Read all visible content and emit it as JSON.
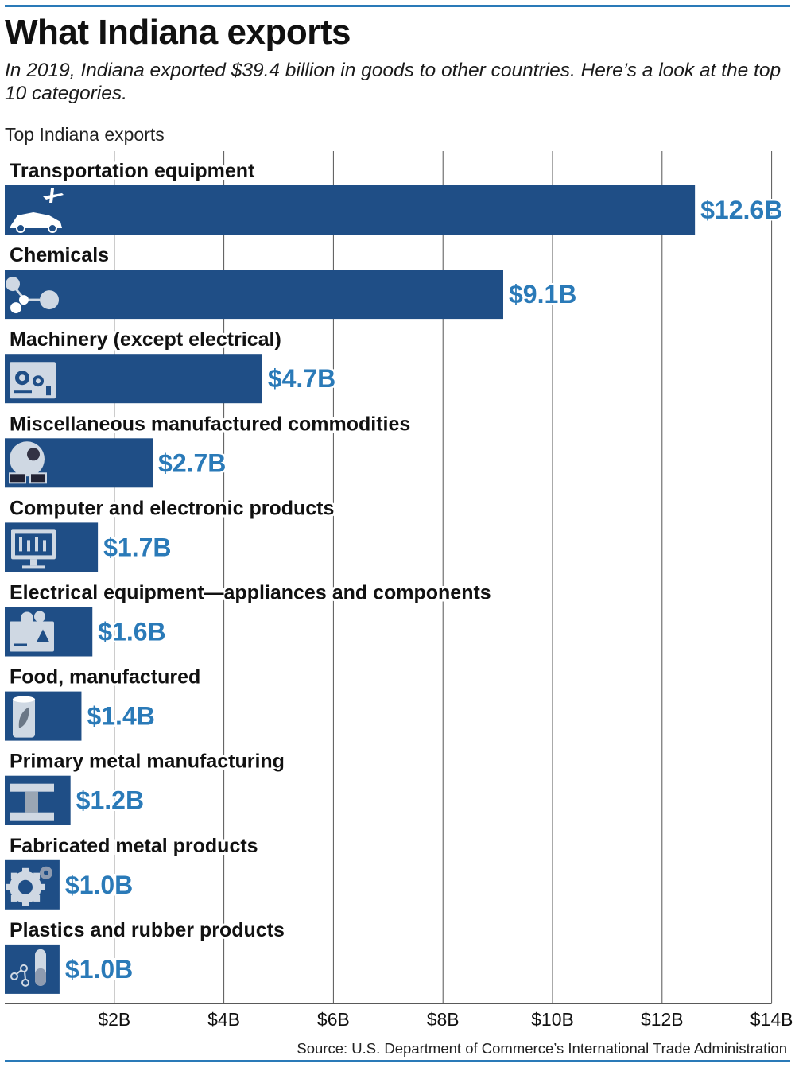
{
  "title": "What Indiana exports",
  "subtitle": "In 2019, Indiana exported $39.4 billion in goods to other countries. Here’s a look at the top 10 categories.",
  "chart_label": "Top Indiana exports",
  "source": "Source: U.S. Department of Commerce’s International Trade Administration",
  "colors": {
    "bar": "#1f4e86",
    "value_label": "#2a7ab8",
    "rule": "#2a7ab8",
    "grid": "#555555",
    "icon_light": "#cfd8e3"
  },
  "chart_data": {
    "type": "bar",
    "orientation": "horizontal",
    "categories": [
      "Transportation equipment",
      "Chemicals",
      "Machinery (except electrical)",
      "Miscellaneous manufactured commodities",
      "Computer and electronic products",
      "Electrical equipment—appliances and components",
      "Food, manufactured",
      "Primary metal manufacturing",
      "Fabricated metal products",
      "Plastics and rubber products"
    ],
    "values": [
      12.6,
      9.1,
      4.7,
      2.7,
      1.7,
      1.6,
      1.4,
      1.2,
      1.0,
      1.0
    ],
    "value_labels": [
      "$12.6B",
      "$9.1B",
      "$4.7B",
      "$2.7B",
      "$1.7B",
      "$1.6B",
      "$1.4B",
      "$1.2B",
      "$1.0B",
      "$1.0B"
    ],
    "icons": [
      "plane-and-car-icon",
      "molecule-icon",
      "gears-machine-icon",
      "ball-and-glasses-icon",
      "monitor-icon",
      "electrical-box-icon",
      "food-can-icon",
      "steel-beam-icon",
      "gear-icon",
      "test-tube-icon"
    ],
    "xlim": [
      0,
      14
    ],
    "ticks": [
      2,
      4,
      6,
      8,
      10,
      12,
      14
    ],
    "tick_labels": [
      "$2B",
      "$4B",
      "$6B",
      "$8B",
      "$10B",
      "$12B",
      "$14B"
    ],
    "grid": true
  }
}
